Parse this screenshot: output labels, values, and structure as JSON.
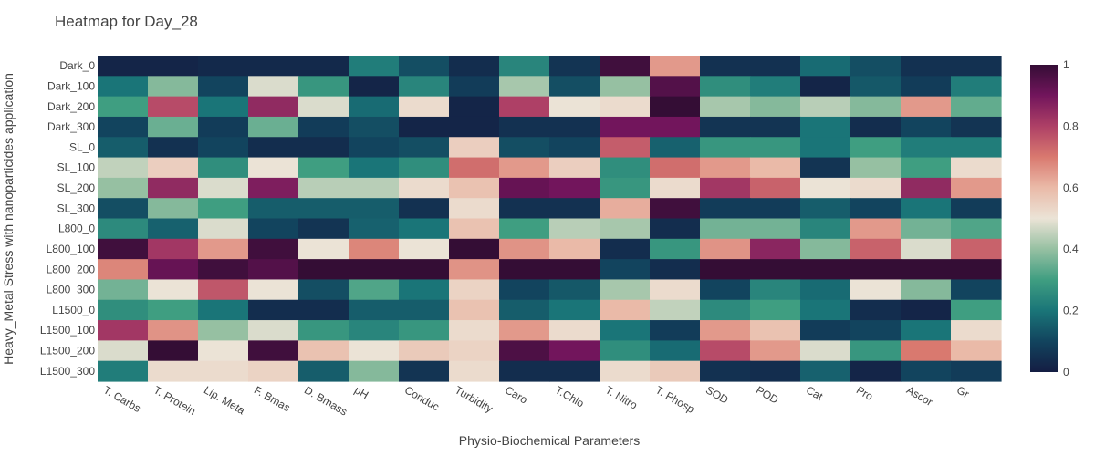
{
  "chart_data": {
    "type": "heatmap",
    "title": "Heatmap for Day_28",
    "xlabel": "Physio-Biochemical Parameters",
    "ylabel": "Heavy_Metal Stress with nanoparticides application",
    "x": [
      "T. Carbs",
      "T. Protein",
      "Lip. Meta",
      "F. Bmas",
      "D. Bmass",
      "pH",
      "Conduc",
      "Turbidity",
      "Caro",
      "T.Chlo",
      "T. Nitro",
      "T. Phosp",
      "SOD",
      "POD",
      "Cat",
      "Pro",
      "Ascor",
      "Gr"
    ],
    "y": [
      "Dark_0",
      "Dark_100",
      "Dark_200",
      "Dark_300",
      "SL_0",
      "SL_100",
      "SL_200",
      "SL_300",
      "L800_0",
      "L800_100",
      "L800_200",
      "L800_300",
      "L1500_0",
      "L1500_100",
      "L1500_200",
      "L1500_300"
    ],
    "z": [
      [
        0.02,
        0.02,
        0.03,
        0.03,
        0.03,
        0.22,
        0.12,
        0.04,
        0.24,
        0.06,
        0.98,
        0.65,
        0.05,
        0.05,
        0.18,
        0.12,
        0.05,
        0.05
      ],
      [
        0.2,
        0.38,
        0.1,
        0.48,
        0.28,
        0.02,
        0.24,
        0.08,
        0.42,
        0.12,
        0.4,
        0.95,
        0.26,
        0.22,
        0.02,
        0.14,
        0.08,
        0.22
      ],
      [
        0.3,
        0.78,
        0.2,
        0.85,
        0.48,
        0.18,
        0.52,
        0.02,
        0.8,
        0.5,
        0.52,
        1.0,
        0.42,
        0.38,
        0.44,
        0.38,
        0.65,
        0.34
      ],
      [
        0.1,
        0.35,
        0.08,
        0.35,
        0.08,
        0.12,
        0.02,
        0.02,
        0.05,
        0.05,
        0.9,
        0.9,
        0.06,
        0.06,
        0.2,
        0.04,
        0.1,
        0.06
      ],
      [
        0.15,
        0.05,
        0.1,
        0.04,
        0.04,
        0.1,
        0.12,
        0.55,
        0.12,
        0.1,
        0.75,
        0.16,
        0.28,
        0.28,
        0.2,
        0.3,
        0.22,
        0.22
      ],
      [
        0.45,
        0.55,
        0.26,
        0.5,
        0.3,
        0.2,
        0.26,
        0.72,
        0.65,
        0.55,
        0.26,
        0.72,
        0.65,
        0.6,
        0.06,
        0.4,
        0.3,
        0.52
      ],
      [
        0.4,
        0.85,
        0.48,
        0.88,
        0.44,
        0.44,
        0.52,
        0.58,
        0.92,
        0.9,
        0.28,
        0.52,
        0.82,
        0.74,
        0.5,
        0.52,
        0.85,
        0.65
      ],
      [
        0.12,
        0.38,
        0.3,
        0.15,
        0.15,
        0.15,
        0.05,
        0.52,
        0.05,
        0.05,
        0.62,
        0.98,
        0.08,
        0.08,
        0.15,
        0.1,
        0.2,
        0.08
      ],
      [
        0.25,
        0.16,
        0.48,
        0.1,
        0.06,
        0.16,
        0.2,
        0.58,
        0.3,
        0.44,
        0.42,
        0.04,
        0.36,
        0.36,
        0.24,
        0.65,
        0.36,
        0.32
      ],
      [
        0.98,
        0.82,
        0.65,
        0.98,
        0.5,
        0.68,
        0.5,
        1.0,
        0.66,
        0.6,
        0.04,
        0.28,
        0.66,
        0.86,
        0.38,
        0.74,
        0.48,
        0.74
      ],
      [
        0.68,
        0.92,
        0.98,
        0.95,
        1.0,
        1.0,
        1.0,
        0.66,
        1.0,
        1.0,
        0.1,
        0.04,
        1.0,
        1.0,
        1.0,
        1.0,
        1.0,
        1.0
      ],
      [
        0.36,
        0.5,
        0.76,
        0.5,
        0.12,
        0.32,
        0.2,
        0.54,
        0.1,
        0.14,
        0.42,
        0.52,
        0.1,
        0.24,
        0.18,
        0.5,
        0.38,
        0.1
      ],
      [
        0.26,
        0.3,
        0.2,
        0.04,
        0.04,
        0.15,
        0.15,
        0.58,
        0.15,
        0.2,
        0.6,
        0.45,
        0.25,
        0.3,
        0.2,
        0.04,
        0.02,
        0.3
      ],
      [
        0.82,
        0.66,
        0.4,
        0.48,
        0.28,
        0.24,
        0.28,
        0.52,
        0.65,
        0.52,
        0.2,
        0.08,
        0.65,
        0.58,
        0.08,
        0.1,
        0.2,
        0.52
      ],
      [
        0.48,
        1.0,
        0.5,
        0.98,
        0.58,
        0.5,
        0.56,
        0.54,
        0.96,
        0.9,
        0.26,
        0.18,
        0.78,
        0.65,
        0.48,
        0.28,
        0.7,
        0.6
      ],
      [
        0.22,
        0.52,
        0.52,
        0.54,
        0.15,
        0.38,
        0.06,
        0.52,
        0.04,
        0.04,
        0.52,
        0.56,
        0.05,
        0.04,
        0.16,
        0.02,
        0.1,
        0.08
      ]
    ],
    "zlim": [
      0,
      1
    ],
    "colorbar_ticks": [
      0,
      0.2,
      0.4,
      0.6,
      0.8,
      1
    ]
  }
}
